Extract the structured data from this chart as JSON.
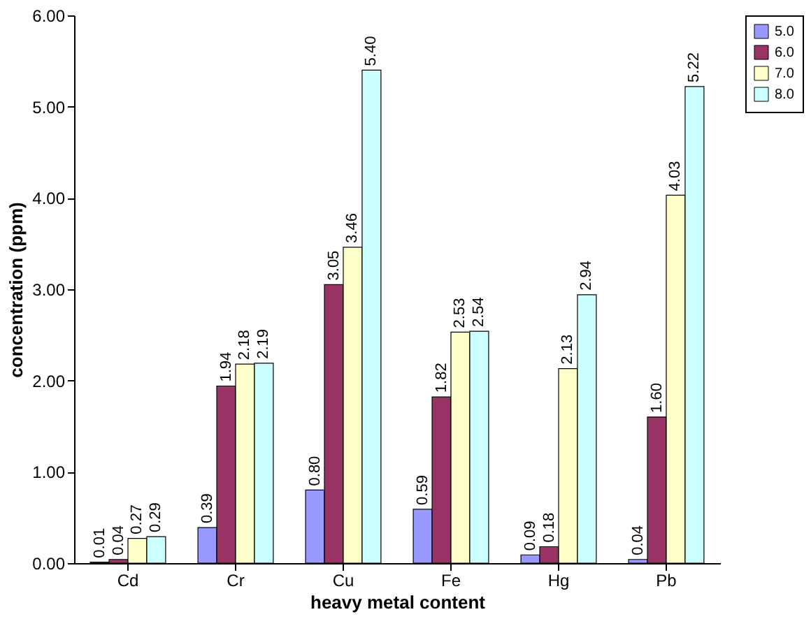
{
  "chart_data": {
    "type": "bar",
    "xlabel": "heavy metal content",
    "ylabel": "concentration (ppm)",
    "categories": [
      "Cd",
      "Cr",
      "Cu",
      "Fe",
      "Hg",
      "Pb"
    ],
    "series": [
      {
        "name": "5.0",
        "color": "#9999ff",
        "values": [
          0.01,
          0.39,
          0.8,
          0.59,
          0.09,
          0.04
        ],
        "value_labels": [
          "0.01",
          "0.39",
          "0.80",
          "0.59",
          "0.09",
          "0.04"
        ]
      },
      {
        "name": "6.0",
        "color": "#993366",
        "values": [
          0.04,
          1.94,
          3.05,
          1.82,
          0.18,
          1.6
        ],
        "value_labels": [
          "0.04",
          "1.94",
          "3.05",
          "1.82",
          "0.18",
          "1.60"
        ]
      },
      {
        "name": "7.0",
        "color": "#ffffcc",
        "values": [
          0.27,
          2.18,
          3.46,
          2.53,
          2.13,
          4.03
        ],
        "value_labels": [
          "0.27",
          "2.18",
          "3.46",
          "2.53",
          "2.13",
          "4.03"
        ]
      },
      {
        "name": "8.0",
        "color": "#ccffff",
        "values": [
          0.29,
          2.19,
          5.4,
          2.54,
          2.94,
          5.22
        ],
        "value_labels": [
          "0.29",
          "2.19",
          "5.40",
          "2.54",
          "2.94",
          "5.22"
        ]
      }
    ],
    "ylim": [
      0,
      6
    ],
    "yticks": [
      {
        "value": 0,
        "label": "0.00"
      },
      {
        "value": 1,
        "label": "1.00"
      },
      {
        "value": 2,
        "label": "2.00"
      },
      {
        "value": 3,
        "label": "3.00"
      },
      {
        "value": 4,
        "label": "4.00"
      },
      {
        "value": 5,
        "label": "5.00"
      },
      {
        "value": 6,
        "label": "6.00"
      }
    ],
    "grid": false,
    "legend": "right"
  }
}
